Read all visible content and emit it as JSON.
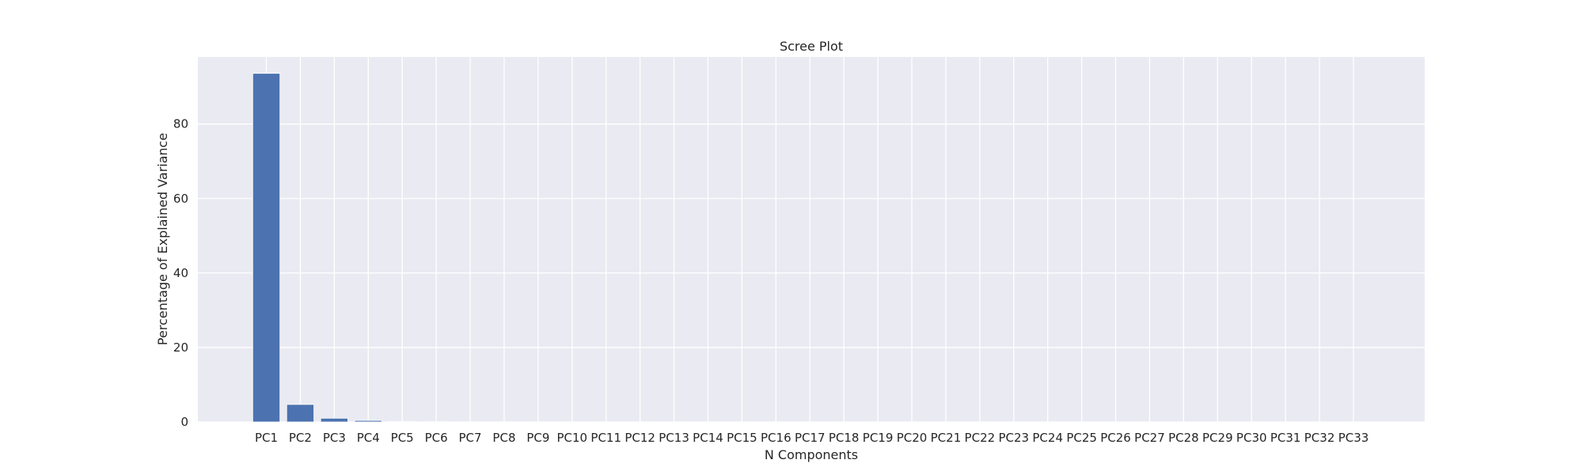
{
  "chart_data": {
    "type": "bar",
    "title": "Scree Plot",
    "xlabel": "N Components",
    "ylabel": "Percentage of Explained Variance",
    "categories": [
      "PC1",
      "PC2",
      "PC3",
      "PC4",
      "PC5",
      "PC6",
      "PC7",
      "PC8",
      "PC9",
      "PC10",
      "PC11",
      "PC12",
      "PC13",
      "PC14",
      "PC15",
      "PC16",
      "PC17",
      "PC18",
      "PC19",
      "PC20",
      "PC21",
      "PC22",
      "PC23",
      "PC24",
      "PC25",
      "PC26",
      "PC27",
      "PC28",
      "PC29",
      "PC30",
      "PC31",
      "PC32",
      "PC33"
    ],
    "values": [
      93.6,
      4.7,
      1.0,
      0.4,
      0.1,
      0.05,
      0.03,
      0.02,
      0.01,
      0.01,
      0.0,
      0.0,
      0.0,
      0.0,
      0.0,
      0.0,
      0.0,
      0.0,
      0.0,
      0.0,
      0.0,
      0.0,
      0.0,
      0.0,
      0.0,
      0.0,
      0.0,
      0.0,
      0.0,
      0.0,
      0.0,
      0.0,
      0.0
    ],
    "yticks": [
      0,
      20,
      40,
      60,
      80
    ],
    "ylim": [
      0,
      98
    ],
    "grid": true,
    "legend": "none",
    "colors": {
      "bar": "#4c72b0",
      "plot_background": "#eaeaf2",
      "grid": "#ffffff",
      "text": "#262626"
    }
  }
}
